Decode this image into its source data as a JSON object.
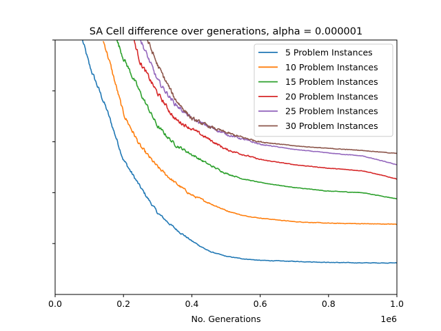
{
  "chart_data": {
    "type": "line",
    "title": "SA Cell difference over generations, alpha = 0.000001",
    "xlabel": "No. Generations",
    "ylabel": "",
    "x_offset_label": "1e6",
    "xlim": [
      0,
      1000000
    ],
    "ylim": [
      0,
      5
    ],
    "x_ticks": [
      {
        "value": 0,
        "label": "0.0"
      },
      {
        "value": 200000,
        "label": "0.2"
      },
      {
        "value": 400000,
        "label": "0.4"
      },
      {
        "value": 600000,
        "label": "0.6"
      },
      {
        "value": 800000,
        "label": "0.8"
      },
      {
        "value": 1000000,
        "label": "1.0"
      }
    ],
    "y_ticks": [
      1,
      2,
      3,
      4,
      5
    ],
    "y_tick_labels_visible": false,
    "grid": false,
    "legend": "top-right",
    "series": [
      {
        "name": "5 Problem Instances",
        "color": "#1f77b4",
        "x": [
          80000,
          100000,
          150000,
          200000,
          250000,
          300000,
          350000,
          400000,
          450000,
          500000,
          550000,
          600000,
          700000,
          800000,
          900000,
          1000000
        ],
        "y": [
          5.0,
          4.5,
          3.65,
          2.65,
          2.1,
          1.6,
          1.3,
          1.05,
          0.85,
          0.75,
          0.7,
          0.67,
          0.65,
          0.63,
          0.62,
          0.62
        ]
      },
      {
        "name": "10 Problem Instances",
        "color": "#ff7f0e",
        "x": [
          140000,
          150000,
          200000,
          250000,
          300000,
          350000,
          400000,
          450000,
          500000,
          550000,
          600000,
          700000,
          800000,
          900000,
          1000000
        ],
        "y": [
          5.0,
          4.8,
          3.55,
          2.9,
          2.5,
          2.2,
          1.95,
          1.8,
          1.65,
          1.55,
          1.5,
          1.43,
          1.4,
          1.39,
          1.38
        ]
      },
      {
        "name": "15 Problem Instances",
        "color": "#2ca02c",
        "x": [
          180000,
          200000,
          250000,
          300000,
          350000,
          400000,
          450000,
          500000,
          550000,
          600000,
          700000,
          800000,
          900000,
          1000000
        ],
        "y": [
          5.0,
          4.65,
          3.95,
          3.3,
          2.95,
          2.75,
          2.55,
          2.38,
          2.27,
          2.2,
          2.1,
          2.03,
          2.0,
          1.88
        ]
      },
      {
        "name": "20 Problem Instances",
        "color": "#d62728",
        "x": [
          230000,
          250000,
          300000,
          350000,
          400000,
          450000,
          500000,
          550000,
          600000,
          700000,
          800000,
          900000,
          1000000
        ],
        "y": [
          5.0,
          4.55,
          3.95,
          3.45,
          3.25,
          3.05,
          2.85,
          2.75,
          2.65,
          2.55,
          2.48,
          2.43,
          2.27
        ]
      },
      {
        "name": "25 Problem Instances",
        "color": "#9467bd",
        "x": [
          250000,
          300000,
          350000,
          400000,
          450000,
          500000,
          550000,
          600000,
          700000,
          800000,
          900000,
          1000000
        ],
        "y": [
          5.0,
          4.2,
          3.75,
          3.45,
          3.3,
          3.15,
          3.05,
          2.95,
          2.85,
          2.78,
          2.72,
          2.55
        ]
      },
      {
        "name": "30 Problem Instances",
        "color": "#8c564b",
        "x": [
          270000,
          300000,
          350000,
          400000,
          450000,
          500000,
          550000,
          600000,
          700000,
          800000,
          900000,
          1000000
        ],
        "y": [
          5.0,
          4.5,
          3.85,
          3.45,
          3.3,
          3.18,
          3.08,
          3.0,
          2.92,
          2.87,
          2.83,
          2.77
        ]
      }
    ]
  }
}
